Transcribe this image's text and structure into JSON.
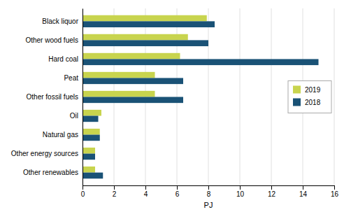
{
  "chart_data": {
    "type": "bar",
    "orientation": "horizontal",
    "categories": [
      "Black liquor",
      "Other wood fuels",
      "Hard coal",
      "Peat",
      "Other fossil fuels",
      "Oil",
      "Natural gas",
      "Other energy sources",
      "Other renewables"
    ],
    "series": [
      {
        "name": "2019",
        "color": "#c8d44e",
        "values": [
          7.9,
          6.7,
          6.2,
          4.6,
          4.6,
          1.2,
          1.1,
          0.8,
          0.8
        ]
      },
      {
        "name": "2018",
        "color": "#1a5276",
        "values": [
          8.4,
          8.0,
          15.0,
          6.4,
          6.4,
          1.0,
          1.1,
          0.8,
          1.3
        ]
      }
    ],
    "xlabel": "PJ",
    "xlim": [
      0,
      16
    ],
    "xticks": [
      0,
      2,
      4,
      6,
      8,
      10,
      12,
      14,
      16
    ],
    "grid": true,
    "legend": "right"
  }
}
